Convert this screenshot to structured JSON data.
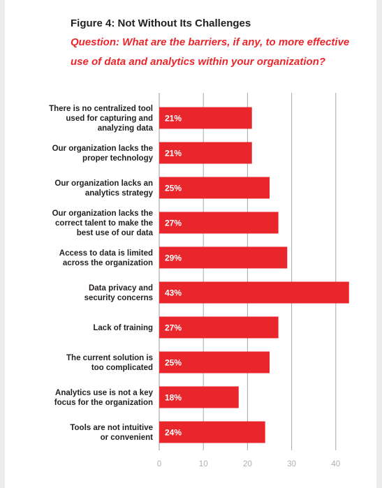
{
  "figure": {
    "title": "Figure 4: Not Without Its Challenges",
    "question_line1": "Question: What are the barriers, if any, to more effective",
    "question_line2": "use of data and analytics within your organization?"
  },
  "colors": {
    "bar": "#e8262b",
    "question": "#e8262b",
    "title": "#231f20",
    "grid": "#a8a8a8",
    "tick": "#b0b0b0"
  },
  "chart_data": {
    "type": "bar",
    "orientation": "horizontal",
    "categories": [
      [
        "There is no centralized tool",
        "used for capturing and",
        "analyzing data"
      ],
      [
        "Our organization lacks the",
        "proper technology"
      ],
      [
        "Our organization lacks an",
        "analytics strategy"
      ],
      [
        "Our organization lacks the",
        "correct talent to make the",
        "best use of our data"
      ],
      [
        "Access to data is limited",
        "across the organization"
      ],
      [
        "Data privacy and",
        "security concerns"
      ],
      [
        "Lack of training"
      ],
      [
        "The current solution is",
        "too complicated"
      ],
      [
        "Analytics use is not a key",
        "focus for the organization"
      ],
      [
        "Tools are not intuitive",
        "or convenient"
      ]
    ],
    "values": [
      21,
      21,
      25,
      27,
      29,
      43,
      27,
      25,
      18,
      24
    ],
    "data_labels": [
      "21%",
      "21%",
      "25%",
      "27%",
      "29%",
      "43%",
      "27%",
      "25%",
      "18%",
      "24%"
    ],
    "x_ticks": [
      0,
      10,
      20,
      30,
      40
    ],
    "xlim": [
      0,
      45
    ],
    "grid": true
  }
}
